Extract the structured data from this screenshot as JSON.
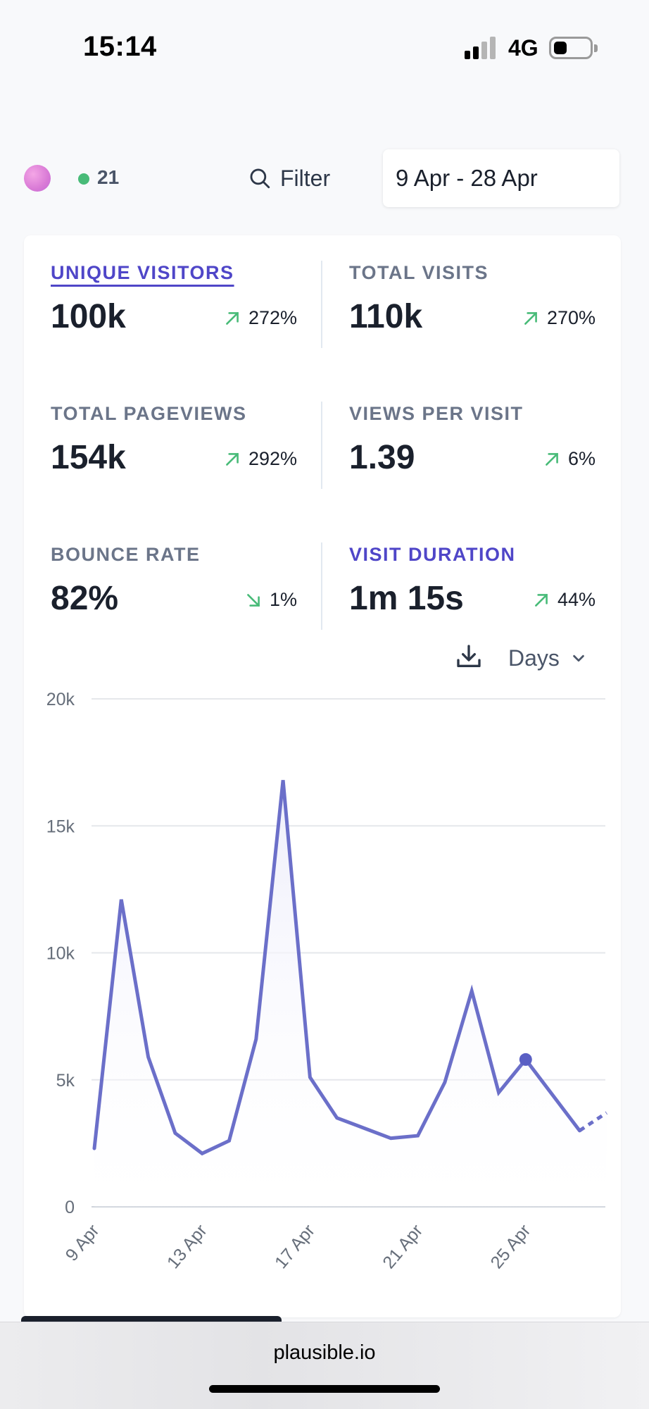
{
  "status_bar": {
    "time": "15:14",
    "network": "4G"
  },
  "header": {
    "live_visitors": "21",
    "filter_label": "Filter",
    "date_range": "9 Apr - 28 Apr"
  },
  "metrics": [
    {
      "label": "UNIQUE VISITORS",
      "value": "100k",
      "change": "272%",
      "direction": "up"
    },
    {
      "label": "TOTAL VISITS",
      "value": "110k",
      "change": "270%",
      "direction": "up"
    },
    {
      "label": "TOTAL PAGEVIEWS",
      "value": "154k",
      "change": "292%",
      "direction": "up"
    },
    {
      "label": "VIEWS PER VISIT",
      "value": "1.39",
      "change": "6%",
      "direction": "up"
    },
    {
      "label": "BOUNCE RATE",
      "value": "82%",
      "change": "1%",
      "direction": "down"
    },
    {
      "label": "VISIT DURATION",
      "value": "1m 15s",
      "change": "44%",
      "direction": "up"
    }
  ],
  "chart_controls": {
    "interval_label": "Days"
  },
  "colors": {
    "accent": "#4f46c8",
    "line": "#6b6fc9",
    "positive": "#48bb78",
    "fill": "#eeeefb"
  },
  "chart_data": {
    "type": "line",
    "title": "",
    "xlabel": "",
    "ylabel": "",
    "ylim": [
      0,
      20000
    ],
    "y_ticks": [
      "0",
      "5k",
      "10k",
      "15k",
      "20k"
    ],
    "y_tick_values": [
      0,
      5000,
      10000,
      15000,
      20000
    ],
    "x_tick_labels": [
      "9 Apr",
      "13 Apr",
      "17 Apr",
      "21 Apr",
      "25 Apr"
    ],
    "x_tick_indices": [
      0,
      4,
      8,
      12,
      16
    ],
    "categories": [
      "9 Apr",
      "10 Apr",
      "11 Apr",
      "12 Apr",
      "13 Apr",
      "14 Apr",
      "15 Apr",
      "16 Apr",
      "17 Apr",
      "18 Apr",
      "19 Apr",
      "20 Apr",
      "21 Apr",
      "22 Apr",
      "23 Apr",
      "24 Apr",
      "25 Apr",
      "26 Apr",
      "27 Apr",
      "28 Apr"
    ],
    "series": [
      {
        "name": "Unique visitors",
        "values": [
          2300,
          12100,
          5900,
          2900,
          2100,
          2600,
          6600,
          16800,
          5100,
          3500,
          3100,
          2700,
          2800,
          4900,
          8500,
          4500,
          5800,
          4400,
          3000,
          3700
        ]
      }
    ],
    "highlighted_index": 16,
    "incomplete_from_index": 18
  }
}
